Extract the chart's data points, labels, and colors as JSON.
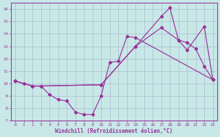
{
  "xlabel": "Windchill (Refroidissement éolien,°C)",
  "xlim": [
    -0.5,
    23.5
  ],
  "ylim": [
    7,
    16.5
  ],
  "yticks": [
    7,
    8,
    9,
    10,
    11,
    12,
    13,
    14,
    15,
    16
  ],
  "xticks": [
    0,
    1,
    2,
    3,
    4,
    5,
    6,
    7,
    8,
    9,
    10,
    11,
    12,
    13,
    14,
    15,
    16,
    17,
    18,
    19,
    20,
    21,
    22,
    23
  ],
  "bg_color": "#c8e8e8",
  "grid_color": "#aab8cc",
  "line_color": "#993399",
  "line1_x": [
    0,
    1,
    2,
    3,
    4,
    5,
    6,
    7,
    8,
    9,
    10,
    11,
    12,
    13,
    14,
    23
  ],
  "line1_y": [
    10.2,
    10.0,
    9.8,
    9.8,
    9.1,
    8.7,
    8.6,
    7.7,
    7.5,
    7.5,
    9.0,
    11.7,
    11.8,
    13.8,
    13.7,
    10.3
  ],
  "line2_x": [
    0,
    2,
    3,
    10,
    14,
    17,
    19,
    20,
    21,
    22,
    23
  ],
  "line2_y": [
    10.2,
    9.8,
    9.8,
    9.9,
    13.0,
    14.5,
    13.5,
    13.3,
    12.8,
    11.4,
    10.3
  ],
  "line3_x": [
    0,
    2,
    3,
    10,
    14,
    17,
    18,
    19,
    20,
    22,
    23
  ],
  "line3_y": [
    10.2,
    9.8,
    9.8,
    9.9,
    13.0,
    15.4,
    16.1,
    13.5,
    12.7,
    14.6,
    10.3
  ]
}
